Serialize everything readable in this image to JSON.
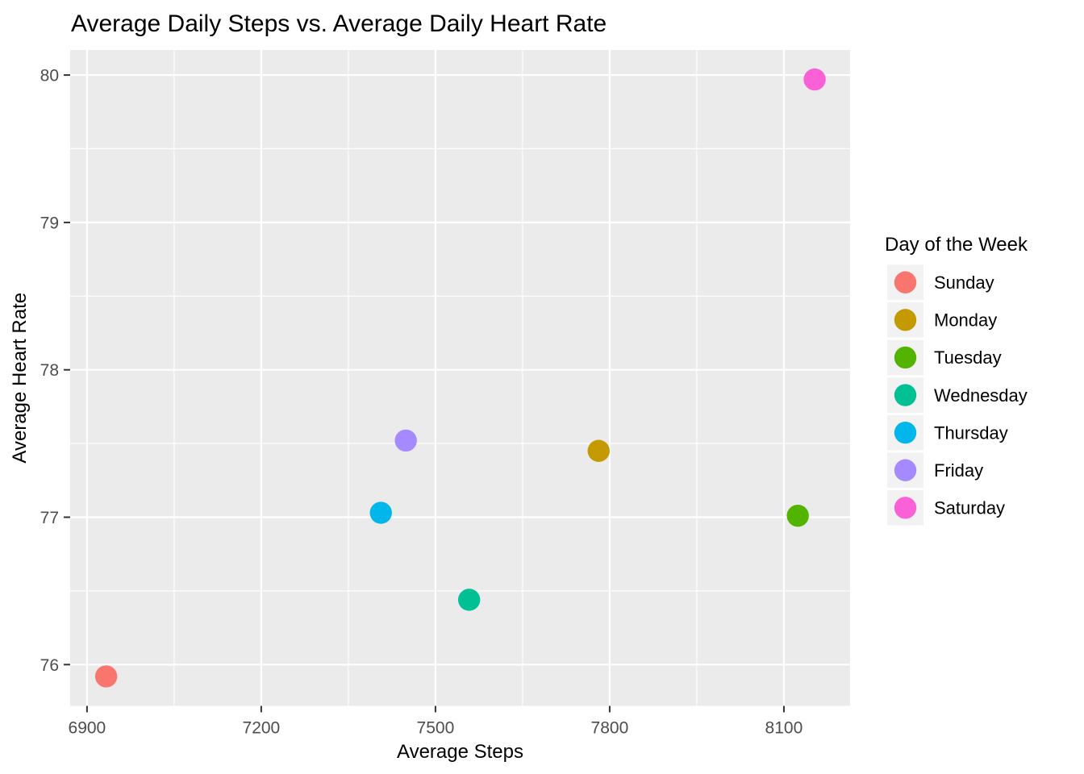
{
  "title": "Average Daily Steps vs. Average Daily Heart Rate",
  "chart_data": {
    "type": "scatter",
    "title": "Average Daily Steps vs. Average Daily Heart Rate",
    "xlabel": "Average Steps",
    "ylabel": "Average Heart Rate",
    "legend_title": "Day of the Week",
    "legend_position": "right",
    "grid": "on",
    "xlim": [
      6871,
      8214
    ],
    "ylim": [
      75.72,
      80.17
    ],
    "x_major_ticks": [
      6900,
      7200,
      7500,
      7800,
      8100
    ],
    "x_minor_ticks": [
      7050,
      7350,
      7650,
      7950
    ],
    "y_major_ticks": [
      76,
      77,
      78,
      79,
      80
    ],
    "y_minor_ticks": [
      76.5,
      77.5,
      78.5,
      79.5
    ],
    "points": [
      {
        "day": "Sunday",
        "steps": 6933,
        "heart_rate": 75.92,
        "color": "#F8766D"
      },
      {
        "day": "Monday",
        "steps": 7781,
        "heart_rate": 77.45,
        "color": "#C49A00"
      },
      {
        "day": "Tuesday",
        "steps": 8124,
        "heart_rate": 77.01,
        "color": "#53B400"
      },
      {
        "day": "Wednesday",
        "steps": 7558,
        "heart_rate": 76.44,
        "color": "#00C094"
      },
      {
        "day": "Thursday",
        "steps": 7406,
        "heart_rate": 77.03,
        "color": "#00B6EB"
      },
      {
        "day": "Friday",
        "steps": 7449,
        "heart_rate": 77.52,
        "color": "#A58AFF"
      },
      {
        "day": "Saturday",
        "steps": 8153,
        "heart_rate": 79.97,
        "color": "#FB61D7"
      }
    ],
    "colors": {
      "panel_background": "#EBEBEB",
      "gridline": "#FFFFFF",
      "tick_mark": "#333333",
      "tick_label": "#4D4D4D",
      "legend_key_background": "#F2F2F2",
      "page_background": "#FFFFFF"
    }
  }
}
